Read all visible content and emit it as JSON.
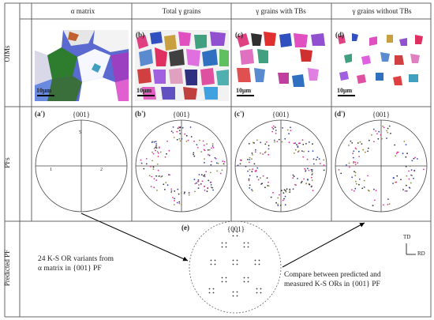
{
  "columns": [
    "α matrix",
    "Total γ grains",
    "γ grains with TBs",
    "γ grains without TBs"
  ],
  "rows": [
    "OIMs",
    "PFs",
    "Predicted PF"
  ],
  "oim_labels": [
    "(a)",
    "(b)",
    "(c)",
    "(d)"
  ],
  "scale_bar_label": "10μm",
  "pf_labels": [
    "(a')",
    "(b')",
    "(c')",
    "(d')"
  ],
  "pf_title": "{001}",
  "predicted_label": "(e)",
  "predicted_title": "{001}",
  "left_text": [
    "24 K-S OR variants from",
    "α matrix in {001} PF"
  ],
  "right_text": [
    "Compare between predicted and",
    "measured K-S ORs in {001} PF"
  ],
  "axes": {
    "td": "TD",
    "rd": "RD"
  },
  "a_prime_marks": [
    "5",
    "1",
    "2"
  ],
  "colors": {
    "border": "#555555",
    "pink": "#e0339a",
    "blue": "#3344aa",
    "olive": "#8a8a40"
  }
}
